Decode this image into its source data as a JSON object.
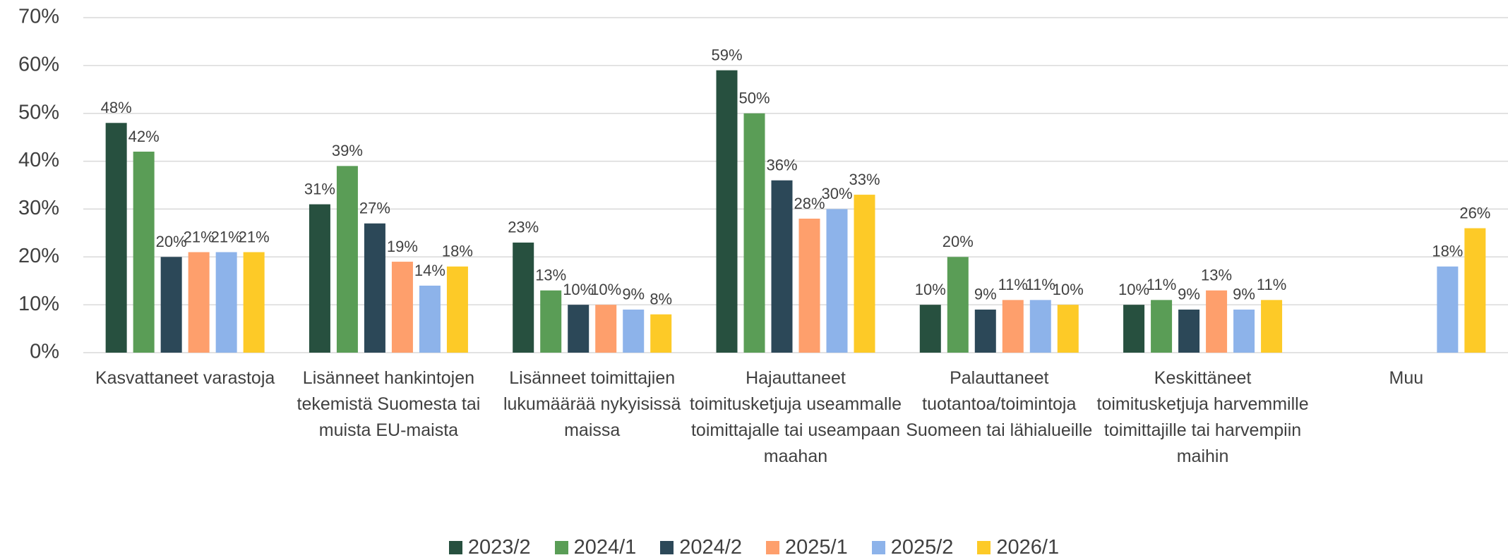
{
  "chart_data": {
    "type": "bar",
    "categories": [
      "Kasvattaneet varastoja",
      "Lisänneet hankintojen tekemistä Suomesta tai muista EU-maista",
      "Lisänneet toimittajien lukumäärää nykyisissä maissa",
      "Hajauttaneet toimitusketjuja useammalle toimittajalle tai useampaan maahan",
      "Palauttaneet tuotantoa/toimintoja Suomeen tai lähialueille",
      "Keskittäneet toimitusketjuja harvemmille toimittajille tai harvempiin maihin",
      "Muu"
    ],
    "series": [
      {
        "name": "2023/2",
        "color": "#27503f",
        "values": [
          48,
          31,
          23,
          59,
          10,
          10,
          null
        ],
        "value_labels": [
          "48%",
          "31%",
          "23%",
          "59%",
          "10%",
          "10%",
          null
        ]
      },
      {
        "name": "2024/1",
        "color": "#5a9d56",
        "values": [
          42,
          39,
          13,
          50,
          20,
          11,
          null
        ],
        "value_labels": [
          "42%",
          "39%",
          "13%",
          "50%",
          "20%",
          "11%",
          null
        ]
      },
      {
        "name": "2024/2",
        "color": "#2c4858",
        "values": [
          20,
          27,
          10,
          36,
          9,
          9,
          null
        ],
        "value_labels": [
          "20%",
          "27%",
          "10%",
          "36%",
          "9%",
          "9%",
          null
        ]
      },
      {
        "name": "2025/1",
        "color": "#fe9f6c",
        "values": [
          21,
          19,
          10,
          28,
          11,
          13,
          null
        ],
        "value_labels": [
          "21%",
          "19%",
          "10%",
          "28%",
          "11%",
          "13%",
          null
        ]
      },
      {
        "name": "2025/2",
        "color": "#8db3ea",
        "values": [
          21,
          14,
          9,
          30,
          11,
          9,
          18
        ],
        "value_labels": [
          "21%",
          "14%",
          "9%",
          "30%",
          "11%",
          "9%",
          "18%"
        ]
      },
      {
        "name": "2026/1",
        "color": "#fdca27",
        "values": [
          21,
          18,
          8,
          33,
          10,
          11,
          26
        ],
        "value_labels": [
          "21%",
          "18%",
          "8%",
          "33%",
          "10%",
          "11%",
          "26%"
        ]
      }
    ],
    "ylim": [
      0,
      70
    ],
    "yticks": [
      {
        "value": 0,
        "label": "0%"
      },
      {
        "value": 10,
        "label": "10%"
      },
      {
        "value": 20,
        "label": "20%"
      },
      {
        "value": 30,
        "label": "30%"
      },
      {
        "value": 40,
        "label": "40%"
      },
      {
        "value": 50,
        "label": "50%"
      },
      {
        "value": 60,
        "label": "60%"
      },
      {
        "value": 70,
        "label": "70%"
      }
    ],
    "grid": true,
    "legend": "bottom"
  }
}
